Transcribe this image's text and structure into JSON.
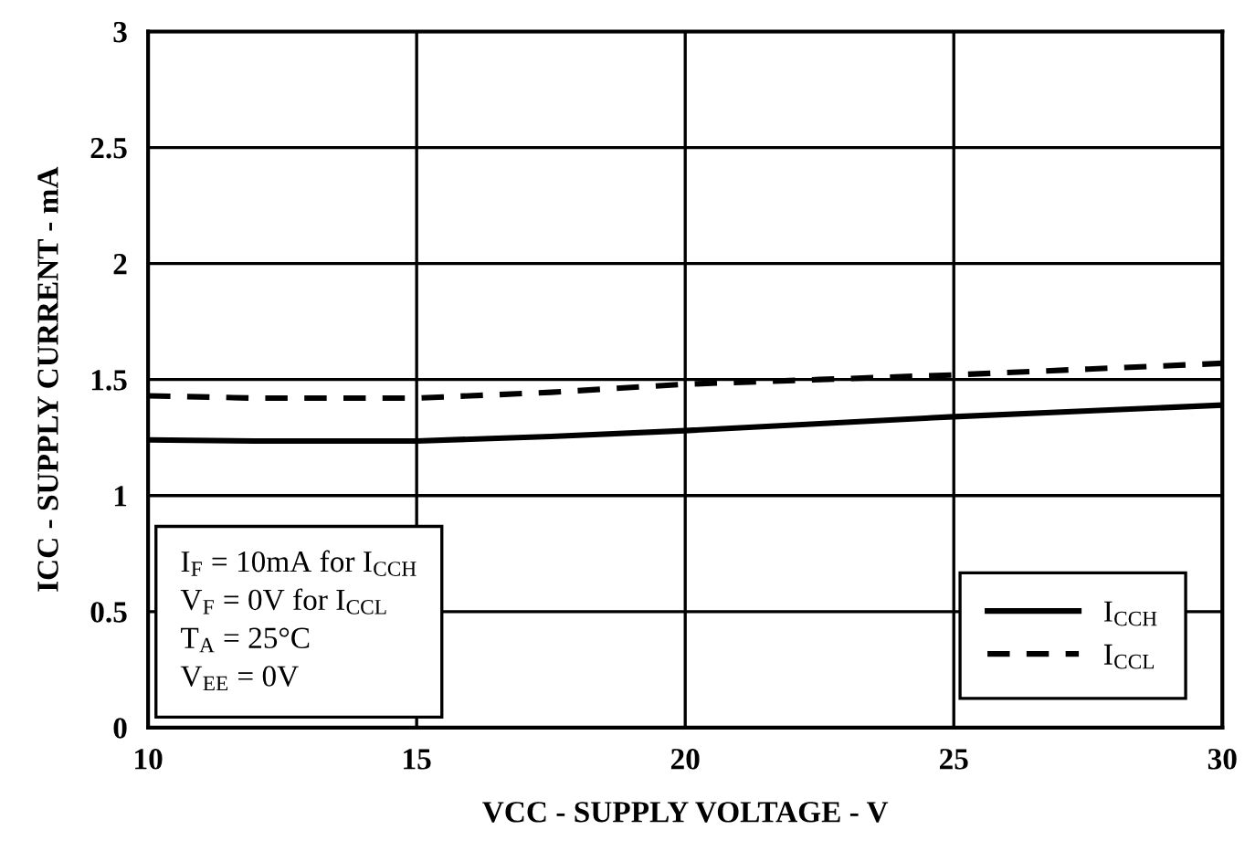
{
  "chart_data": {
    "type": "line",
    "xlabel": "VCC - SUPPLY VOLTAGE - V",
    "ylabel": "ICC - SUPPLY CURRENT - mA",
    "x": [
      10,
      12,
      15,
      17.5,
      20,
      22.5,
      25,
      27.5,
      30
    ],
    "series": [
      {
        "name": "I$_{CCH}$",
        "color": "#000000",
        "line_style": "solid",
        "values": [
          1.24,
          1.235,
          1.235,
          1.255,
          1.28,
          1.31,
          1.34,
          1.365,
          1.39
        ]
      },
      {
        "name": "I$_{CCL}$",
        "color": "#000000",
        "line_style": "dashed",
        "values": [
          1.43,
          1.42,
          1.42,
          1.445,
          1.48,
          1.5,
          1.52,
          1.545,
          1.57
        ]
      }
    ],
    "xlim": [
      10,
      30
    ],
    "xticks": [
      10,
      15,
      20,
      25,
      30
    ],
    "ylim": [
      0,
      3
    ],
    "yticks": [
      0,
      0.5,
      1,
      1.5,
      2,
      2.5,
      3
    ],
    "grid": true,
    "legend": "bottom right",
    "marker": "none",
    "annotations": [
      "I$_{F}$ = 10mA for I$_{CCH}$",
      "V$_{F}$ = 0V for I$_{CCL}$",
      "T$_{A}$ = 25°C",
      "V$_{EE}$ = 0V"
    ]
  }
}
